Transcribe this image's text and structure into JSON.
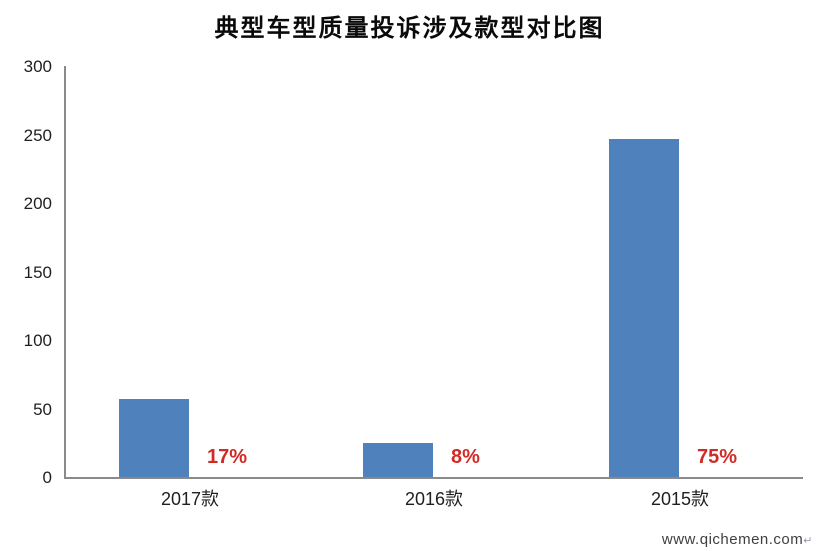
{
  "title": "典型车型质量投诉涉及款型对比图",
  "watermark": {
    "text": "www.qichemen.com",
    "return_mark": "↵"
  },
  "colors": {
    "bar": "#4f81bd",
    "percent_label": "#d02b24",
    "axis": "#8a8a8a",
    "tick_text": "#1f1f1f",
    "watermark_text": "#3f3f3f"
  },
  "chart_data": {
    "type": "bar",
    "title": "典型车型质量投诉涉及款型对比图",
    "categories": [
      "2017款",
      "2016款",
      "2015款"
    ],
    "values": [
      57,
      25,
      247
    ],
    "percent_labels": [
      "17%",
      "8%",
      "75%"
    ],
    "ylabel": "",
    "xlabel": "",
    "ylim": [
      0,
      300
    ],
    "yticks": [
      0,
      50,
      100,
      150,
      200,
      250,
      300
    ],
    "grid": false,
    "legend": "none",
    "bar_color": "#4f81bd",
    "percent_label_color": "#d02b24"
  }
}
